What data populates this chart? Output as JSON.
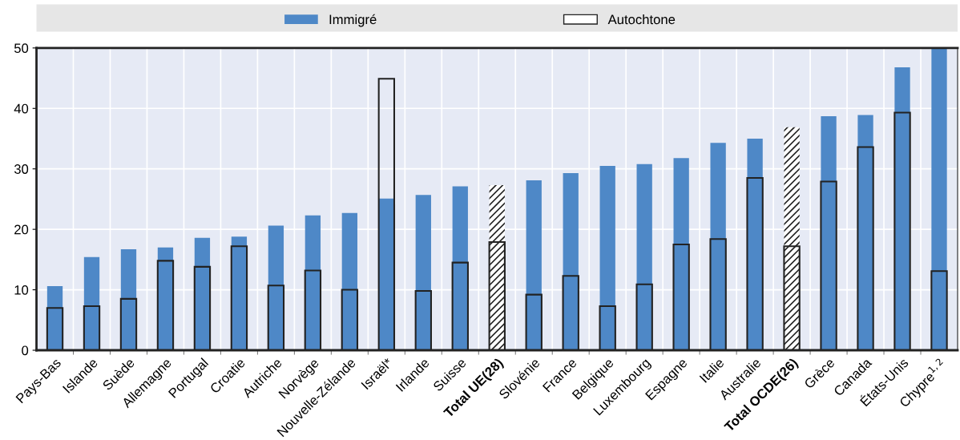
{
  "chart_data": {
    "type": "bar",
    "categories": [
      "Pays-Bas",
      "Islande",
      "Suède",
      "Allemagne",
      "Portugal",
      "Croatie",
      "Autriche",
      "Norvège",
      "Nouvelle-Zélande",
      "Israël*",
      "Irlande",
      "Suisse",
      "Total UE(28)",
      "Slovénie",
      "France",
      "Belgique",
      "Luxembourg",
      "Espagne",
      "Italie",
      "Australie",
      "Total OCDE(26)",
      "Grèce",
      "Canada",
      "États-Unis",
      "Chypre$^{1,2}$"
    ],
    "series": [
      {
        "name": "Immigré",
        "color": "#4e88c7",
        "colors": [
          "#4e88c7",
          "#4e88c7",
          "#4e88c7",
          "#4e88c7",
          "#4e88c7",
          "#4e88c7",
          "#4e88c7",
          "#4e88c7",
          "#4e88c7",
          "#4e88c7",
          "#4e88c7",
          "#4e88c7",
          "#ffffff",
          "#4e88c7",
          "#4e88c7",
          "#4e88c7",
          "#4e88c7",
          "#4e88c7",
          "#4e88c7",
          "#4e88c7",
          "#ffffff",
          "#4e88c7",
          "#4e88c7",
          "#4e88c7",
          "#4e88c7"
        ],
        "values": [
          10.6,
          15.4,
          16.7,
          17.0,
          18.6,
          18.8,
          20.6,
          22.3,
          22.7,
          25.1,
          25.7,
          27.1,
          27.3,
          28.1,
          29.3,
          30.5,
          30.8,
          31.8,
          34.3,
          35.0,
          36.9,
          38.7,
          38.9,
          46.8,
          49.9
        ]
      },
      {
        "name": "Autochtone",
        "color": "#222222",
        "values": [
          7.0,
          7.3,
          8.5,
          14.8,
          13.8,
          17.2,
          10.7,
          13.2,
          10.0,
          44.9,
          9.8,
          14.5,
          17.9,
          9.2,
          12.3,
          7.3,
          10.9,
          17.5,
          18.4,
          28.5,
          17.2,
          27.9,
          33.6,
          39.3,
          13.1
        ]
      }
    ],
    "ylim": [
      0,
      50
    ],
    "yticks": [
      0,
      10,
      20,
      30,
      40,
      50
    ],
    "grid": true,
    "legend": "top"
  }
}
